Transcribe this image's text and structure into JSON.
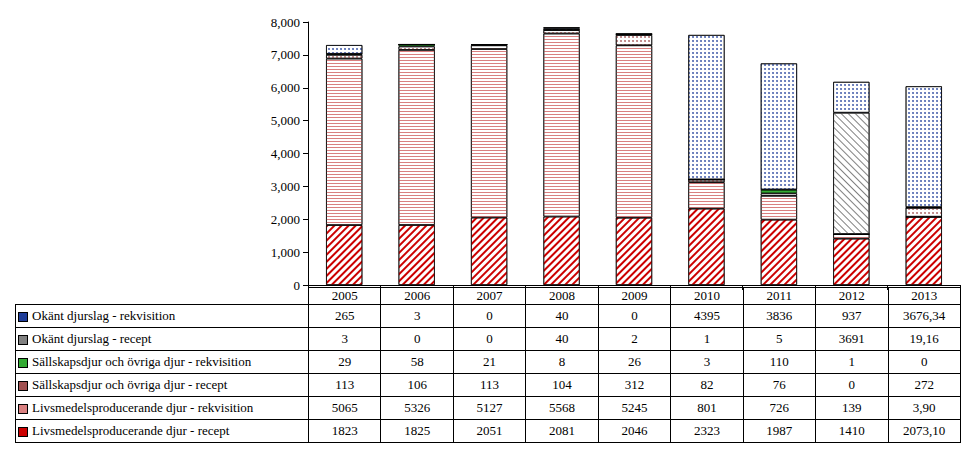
{
  "chart_data": {
    "type": "bar",
    "stacked": true,
    "grid": false,
    "categories": [
      "2005",
      "2006",
      "2007",
      "2008",
      "2009",
      "2010",
      "2011",
      "2012",
      "2013"
    ],
    "ylim": [
      0,
      8000
    ],
    "yticks": [
      0,
      1000,
      2000,
      3000,
      4000,
      5000,
      6000,
      7000,
      8000
    ],
    "series": [
      {
        "name": "Livsmedelsproducerande djur - recept",
        "color": "#cc0000",
        "marker": "diagonal",
        "values": [
          1823,
          1825,
          2051,
          2081,
          2046,
          2323,
          1987,
          1410,
          2073.1
        ],
        "value_labels": [
          "1823",
          "1825",
          "2051",
          "2081",
          "2046",
          "2323",
          "1987",
          "1410",
          "2073,10"
        ]
      },
      {
        "name": "Livsmedelsproducerande djur - rekvisition",
        "color": "#d98080",
        "marker": "horizontal",
        "values": [
          5065,
          5326,
          5127,
          5568,
          5245,
          801,
          726,
          139,
          3.9
        ],
        "value_labels": [
          "5065",
          "5326",
          "5127",
          "5568",
          "5245",
          "801",
          "726",
          "139",
          "3,90"
        ]
      },
      {
        "name": "Sällskapsdjur och övriga djur - recept",
        "color": "#a05050",
        "marker": "dots",
        "values": [
          113,
          106,
          113,
          104,
          312,
          82,
          76,
          0,
          272
        ]
      },
      {
        "name": "Sällskapsdjur och övriga djur - rekvisition",
        "color": "#33aa33",
        "marker": "solid",
        "values": [
          29,
          58,
          21,
          8,
          26,
          3,
          110,
          1,
          0
        ]
      },
      {
        "name": "Okänt djurslag - recept",
        "color": "#808080",
        "marker": "crosshatch",
        "values": [
          3,
          0,
          0,
          40,
          2,
          1,
          5,
          3691,
          19.16
        ],
        "value_labels": [
          "3",
          "0",
          "0",
          "40",
          "2",
          "1",
          "5",
          "3691",
          "19,16"
        ]
      },
      {
        "name": "Okänt djurslag - rekvisition",
        "color": "#1f3d99",
        "marker": "dots",
        "values": [
          265,
          3,
          0,
          40,
          0,
          4395,
          3836,
          937,
          3676.34
        ],
        "value_labels": [
          "265",
          "3",
          "0",
          "40",
          "0",
          "4395",
          "3836",
          "937",
          "3676,34"
        ]
      }
    ]
  }
}
